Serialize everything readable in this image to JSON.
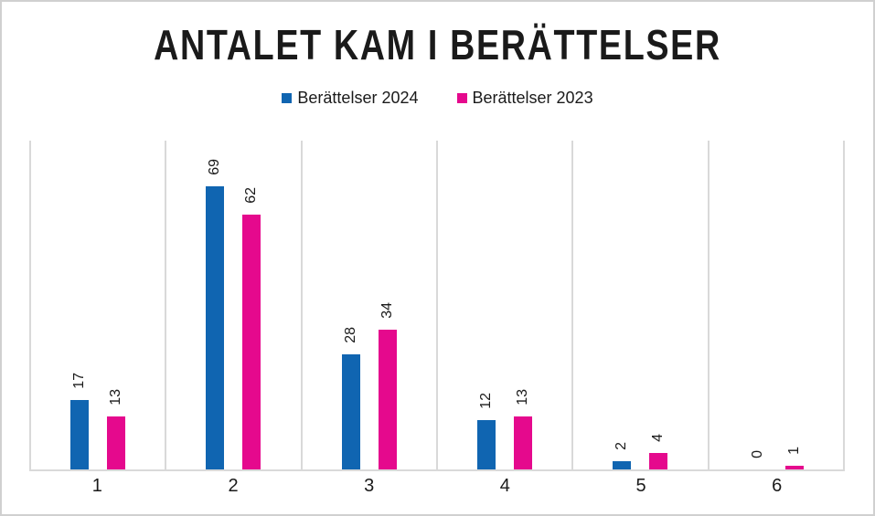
{
  "frame": {
    "background": "#ffffff",
    "border_color": "#d0d0d0"
  },
  "chart_data": {
    "type": "bar",
    "title": "ANTALET KAM I BERÄTTELSER",
    "categories": [
      "1",
      "2",
      "3",
      "4",
      "5",
      "6"
    ],
    "series": [
      {
        "name": "Berättelser 2024",
        "year": "2024",
        "color": "#1065b1",
        "values": [
          17,
          69,
          28,
          12,
          2,
          0
        ]
      },
      {
        "name": "Berättelser 2023",
        "year": "2023",
        "color": "#e5098d",
        "values": [
          13,
          62,
          34,
          13,
          4,
          1
        ]
      }
    ],
    "ylim": [
      0,
      80
    ],
    "xlabel": "",
    "ylabel": "",
    "grid": {
      "vertical_category_separators": true,
      "horizontal": false,
      "color": "#d9d9d9"
    },
    "axis": {
      "baseline_color": "#d9d9d9",
      "y_axis_visible": false
    },
    "legend": {
      "position": "top-center"
    },
    "data_labels": {
      "orientation": "rotated-90-up",
      "color": "#1a1a1a"
    }
  }
}
